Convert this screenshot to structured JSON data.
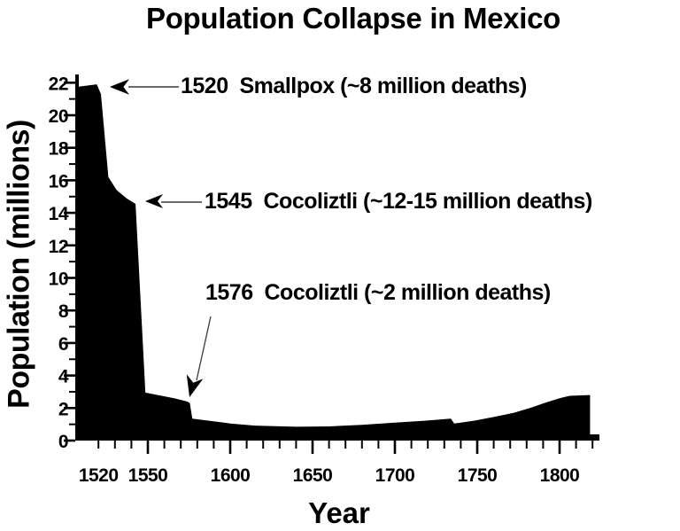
{
  "title": "Population Collapse in Mexico",
  "colors": {
    "ink": "#000000",
    "background": "#ffffff",
    "arrow_line": "#3a3a3a"
  },
  "chart_data": {
    "type": "area",
    "title": "Population Collapse in Mexico",
    "xlabel": "Year",
    "ylabel": "Population (millions)",
    "xlim": [
      1507,
      1824
    ],
    "ylim": [
      0,
      22
    ],
    "grid": false,
    "fill_color": "#000000",
    "x_axis": {
      "label": "Year",
      "labeled_ticks": [
        1520,
        1550,
        1600,
        1650,
        1700,
        1750,
        1800
      ],
      "major_ticks": [
        1550,
        1600,
        1650,
        1700,
        1750,
        1800
      ],
      "minor_from": 1520,
      "minor_to": 1820,
      "minor_step": 10
    },
    "y_axis": {
      "label": "Population (millions)",
      "tick_labels": [
        0,
        2,
        4,
        6,
        8,
        10,
        12,
        14,
        16,
        18,
        20,
        22
      ],
      "major_step": 2,
      "minor_step": 1,
      "max": 22
    },
    "series": [
      {
        "name": "Population of Mexico (millions)",
        "color": "#000000",
        "points": [
          [
            1507.5,
            21.75
          ],
          [
            1519,
            21.9
          ],
          [
            1521.5,
            21.3
          ],
          [
            1526,
            16.2
          ],
          [
            1531,
            15.4
          ],
          [
            1537,
            14.9
          ],
          [
            1542.5,
            14.55
          ],
          [
            1548.5,
            2.95
          ],
          [
            1556,
            2.8
          ],
          [
            1566,
            2.6
          ],
          [
            1574,
            2.4
          ],
          [
            1575.5,
            2.3
          ],
          [
            1577,
            1.35
          ],
          [
            1585,
            1.25
          ],
          [
            1600,
            1.05
          ],
          [
            1615,
            0.92
          ],
          [
            1640,
            0.85
          ],
          [
            1660,
            0.87
          ],
          [
            1680,
            0.97
          ],
          [
            1700,
            1.1
          ],
          [
            1718,
            1.22
          ],
          [
            1734,
            1.35
          ],
          [
            1736,
            1.05
          ],
          [
            1748,
            1.22
          ],
          [
            1760,
            1.45
          ],
          [
            1772,
            1.7
          ],
          [
            1782,
            2.0
          ],
          [
            1792,
            2.35
          ],
          [
            1800,
            2.6
          ],
          [
            1806,
            2.75
          ],
          [
            1818.5,
            2.8
          ]
        ]
      }
    ],
    "annotations": [
      {
        "label": "1520  Smallpox (~8 million deaths)",
        "event_year": 1520,
        "deaths": "~8 million",
        "target": {
          "year": 1526,
          "millions": 21.7
        }
      },
      {
        "label": "1545  Cocoliztli (~12-15 million deaths)",
        "event_year": 1545,
        "deaths": "~12-15 million",
        "target": {
          "year": 1543,
          "millions": 14.6
        }
      },
      {
        "label": "1576  Cocoliztli (~2 million deaths)",
        "event_year": 1576,
        "deaths": "~2 million",
        "target": {
          "year": 1575,
          "millions": 2.5
        }
      }
    ]
  }
}
